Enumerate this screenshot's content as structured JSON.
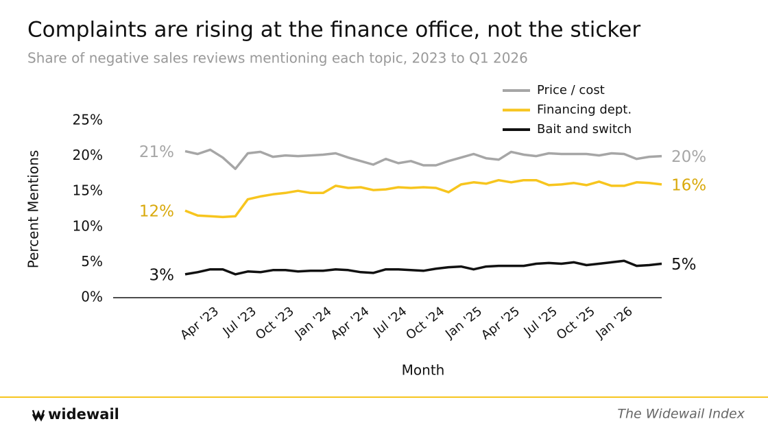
{
  "chart_data": {
    "type": "line",
    "title": "Complaints are rising at the finance office, not the sticker",
    "subtitle": "Share of negative sales reviews mentioning each topic, 2023 to Q1 2026",
    "x_label": "Month",
    "y_label": "Percent Mentions",
    "categories": [
      null,
      null,
      null,
      "Apr '23",
      null,
      null,
      "Jul '23",
      null,
      null,
      "Oct '23",
      null,
      null,
      "Jan '24",
      null,
      null,
      "Apr '24",
      null,
      null,
      "Jul '24",
      null,
      null,
      "Oct '24",
      null,
      null,
      "Jan '25",
      null,
      null,
      "Apr '25",
      null,
      null,
      "Jul '25",
      null,
      null,
      "Oct '25",
      null,
      null,
      "Jan '26",
      null,
      null
    ],
    "ylim": [
      0,
      25
    ],
    "yticks": [
      {
        "value": 0,
        "label": "0%"
      },
      {
        "value": 5,
        "label": "5%"
      },
      {
        "value": 10,
        "label": "10%"
      },
      {
        "value": 15,
        "label": "15%"
      },
      {
        "value": 20,
        "label": "20%"
      },
      {
        "value": 25,
        "label": "25%"
      }
    ],
    "legend": "top-right",
    "series": [
      {
        "name": "Price / cost",
        "color": "#a6a6a6",
        "label_color": "#a6a6a6",
        "values": [
          20.7,
          20.3,
          20.9,
          19.8,
          18.2,
          20.4,
          20.6,
          19.9,
          20.1,
          20.0,
          20.1,
          20.2,
          20.4,
          19.8,
          19.3,
          18.8,
          19.6,
          19.0,
          19.3,
          18.7,
          18.7,
          19.3,
          19.8,
          20.3,
          19.7,
          19.5,
          20.6,
          20.2,
          20.0,
          20.4,
          20.3,
          20.3,
          20.3,
          20.1,
          20.4,
          20.3,
          19.6,
          19.9,
          20.0
        ],
        "value_labels": [
          "21%",
          null,
          null,
          null,
          null,
          null,
          null,
          null,
          null,
          null,
          null,
          null,
          null,
          null,
          null,
          null,
          null,
          null,
          null,
          null,
          null,
          null,
          null,
          null,
          null,
          null,
          null,
          null,
          null,
          null,
          null,
          null,
          null,
          null,
          null,
          null,
          null,
          null,
          "20%"
        ]
      },
      {
        "name": "Financing dept.",
        "color": "#f7c51e",
        "label_color": "#d9a90c",
        "values": [
          12.3,
          11.6,
          11.5,
          11.4,
          11.5,
          13.9,
          14.3,
          14.6,
          14.8,
          15.1,
          14.8,
          14.8,
          15.8,
          15.5,
          15.6,
          15.2,
          15.3,
          15.6,
          15.5,
          15.6,
          15.5,
          14.9,
          16.0,
          16.3,
          16.1,
          16.6,
          16.3,
          16.6,
          16.6,
          15.9,
          16.0,
          16.2,
          15.9,
          16.4,
          15.8,
          15.8,
          16.3,
          16.2,
          16.0
        ],
        "value_labels": [
          "12%",
          null,
          null,
          null,
          null,
          null,
          null,
          null,
          null,
          null,
          null,
          null,
          null,
          null,
          null,
          null,
          null,
          null,
          null,
          null,
          null,
          null,
          null,
          null,
          null,
          null,
          null,
          null,
          null,
          null,
          null,
          null,
          null,
          null,
          null,
          null,
          null,
          null,
          "16%"
        ]
      },
      {
        "name": "Bait and switch",
        "color": "#111111",
        "label_color": "#111111",
        "values": [
          3.3,
          3.6,
          4.0,
          4.0,
          3.3,
          3.7,
          3.6,
          3.9,
          3.9,
          3.7,
          3.8,
          3.8,
          4.0,
          3.9,
          3.6,
          3.5,
          4.0,
          4.0,
          3.9,
          3.8,
          4.1,
          4.3,
          4.4,
          4.0,
          4.4,
          4.5,
          4.5,
          4.5,
          4.8,
          4.9,
          4.8,
          5.0,
          4.6,
          4.8,
          5.0,
          5.2,
          4.5,
          4.6,
          4.8
        ],
        "value_labels": [
          "3%",
          null,
          null,
          null,
          null,
          null,
          null,
          null,
          null,
          null,
          null,
          null,
          null,
          null,
          null,
          null,
          null,
          null,
          null,
          null,
          null,
          null,
          null,
          null,
          null,
          null,
          null,
          null,
          null,
          null,
          null,
          null,
          null,
          null,
          null,
          null,
          null,
          null,
          "5%"
        ]
      }
    ]
  },
  "footer": {
    "brand": "widewail",
    "source": "The Widewail Index"
  }
}
